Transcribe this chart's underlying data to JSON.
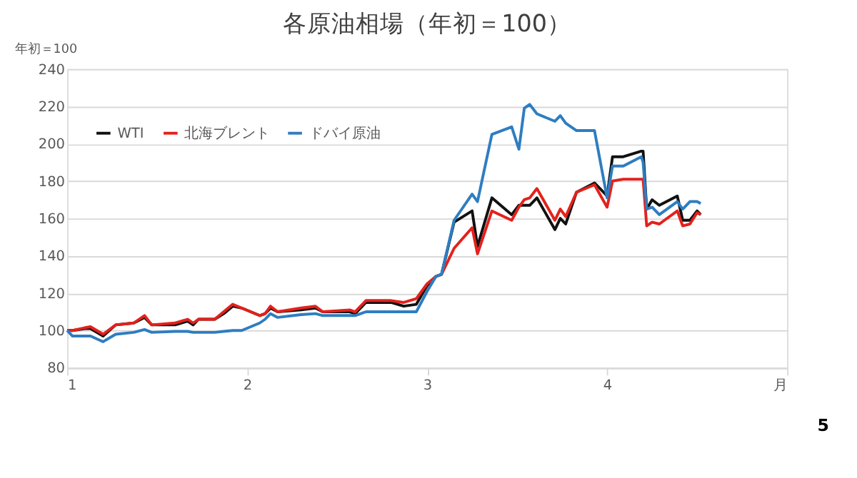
{
  "chart_data": {
    "type": "line",
    "title": "各原油相場（年初＝100）",
    "ylabel": "年初＝100",
    "x": [
      1.0,
      1.03,
      1.1,
      1.13,
      1.2,
      1.27,
      1.37,
      1.43,
      1.47,
      1.6,
      1.67,
      1.7,
      1.73,
      1.82,
      1.87,
      1.92,
      1.97,
      2.07,
      2.1,
      2.13,
      2.17,
      2.3,
      2.38,
      2.42,
      2.57,
      2.6,
      2.66,
      2.8,
      2.87,
      2.94,
      3.0,
      3.05,
      3.08,
      3.15,
      3.25,
      3.28,
      3.36,
      3.47,
      3.51,
      3.54,
      3.57,
      3.61,
      3.71,
      3.74,
      3.77,
      3.83,
      3.93,
      4.0,
      4.03,
      4.09,
      4.19,
      4.2,
      4.22,
      4.25,
      4.29,
      4.39,
      4.42,
      4.46,
      4.5,
      4.52
    ],
    "series": [
      {
        "name": "WTI",
        "color": "#111111",
        "values": [
          100,
          100,
          101,
          101,
          97,
          103,
          104,
          107,
          103,
          103,
          105,
          103,
          106,
          106,
          109,
          113,
          112,
          108,
          109,
          112,
          110,
          111,
          112,
          110,
          110,
          109,
          115,
          115,
          113,
          114,
          124,
          129,
          130,
          158,
          164,
          145,
          171,
          162,
          167,
          167,
          167,
          171,
          154,
          160,
          157,
          174,
          179,
          172,
          193,
          193,
          196,
          196,
          165,
          170,
          167,
          172,
          159,
          159,
          164,
          162
        ]
      },
      {
        "name": "北海ブレント",
        "color": "#e3211c",
        "values": [
          100,
          100,
          101.5,
          102,
          98,
          103,
          104,
          108,
          103,
          104,
          106,
          104,
          106,
          106,
          110,
          114,
          112,
          108,
          109,
          113,
          110,
          112,
          113,
          110,
          111,
          110,
          116,
          116,
          115,
          117,
          125,
          129,
          130,
          144,
          155,
          141,
          164,
          159,
          166,
          170,
          171,
          176,
          159,
          165,
          161,
          174,
          178,
          166,
          180,
          181,
          181,
          181,
          156,
          158,
          157,
          164,
          156,
          157,
          163,
          162
        ]
      },
      {
        "name": "ドバイ原油",
        "color": "#2e7dc1",
        "values": [
          100,
          97,
          97,
          97,
          94,
          98,
          99,
          100.5,
          99,
          99.5,
          99.5,
          99,
          99,
          99,
          99.5,
          100,
          100,
          104,
          106,
          109,
          107,
          108.5,
          109,
          108,
          108,
          108,
          110,
          110,
          110,
          110,
          121,
          129,
          130,
          159,
          173,
          169,
          205,
          209,
          197,
          219,
          221,
          216,
          212,
          215,
          211,
          207,
          207,
          171,
          188,
          188,
          193,
          190,
          165,
          166,
          162,
          169,
          165,
          169,
          169,
          168
        ]
      }
    ],
    "xlim": [
      1,
      5
    ],
    "xticks": [
      1,
      2,
      3,
      4,
      {
        "value": 5,
        "label": "月"
      }
    ],
    "ylim": [
      80,
      240
    ],
    "yticks": [
      80,
      100,
      120,
      140,
      160,
      180,
      200,
      220,
      240
    ],
    "grid": "y",
    "legend": "top left",
    "marker": "none",
    "line_style": "solid",
    "annotations": [
      "5"
    ]
  }
}
